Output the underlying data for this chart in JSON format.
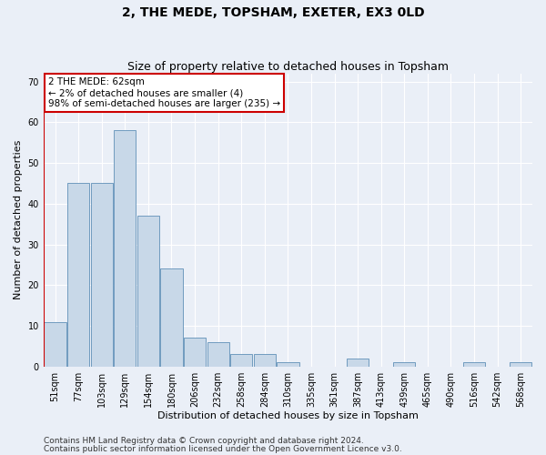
{
  "title": "2, THE MEDE, TOPSHAM, EXETER, EX3 0LD",
  "subtitle": "Size of property relative to detached houses in Topsham",
  "xlabel": "Distribution of detached houses by size in Topsham",
  "ylabel": "Number of detached properties",
  "categories": [
    "51sqm",
    "77sqm",
    "103sqm",
    "129sqm",
    "154sqm",
    "180sqm",
    "206sqm",
    "232sqm",
    "258sqm",
    "284sqm",
    "310sqm",
    "335sqm",
    "361sqm",
    "387sqm",
    "413sqm",
    "439sqm",
    "465sqm",
    "490sqm",
    "516sqm",
    "542sqm",
    "568sqm"
  ],
  "values": [
    11,
    45,
    45,
    58,
    37,
    24,
    7,
    6,
    3,
    3,
    1,
    0,
    0,
    2,
    0,
    1,
    0,
    0,
    1,
    0,
    1
  ],
  "bar_color": "#c8d8e8",
  "bar_edge_color": "#6090b8",
  "annotation_text": "2 THE MEDE: 62sqm\n← 2% of detached houses are smaller (4)\n98% of semi-detached houses are larger (235) →",
  "annotation_box_color": "#ffffff",
  "annotation_box_edge_color": "#cc0000",
  "vline_color": "#cc0000",
  "ylim": [
    0,
    72
  ],
  "yticks": [
    0,
    10,
    20,
    30,
    40,
    50,
    60,
    70
  ],
  "background_color": "#eaeff7",
  "grid_color": "#ffffff",
  "footer_line1": "Contains HM Land Registry data © Crown copyright and database right 2024.",
  "footer_line2": "Contains public sector information licensed under the Open Government Licence v3.0.",
  "title_fontsize": 10,
  "subtitle_fontsize": 9,
  "xlabel_fontsize": 8,
  "ylabel_fontsize": 8,
  "tick_fontsize": 7,
  "footer_fontsize": 6.5
}
